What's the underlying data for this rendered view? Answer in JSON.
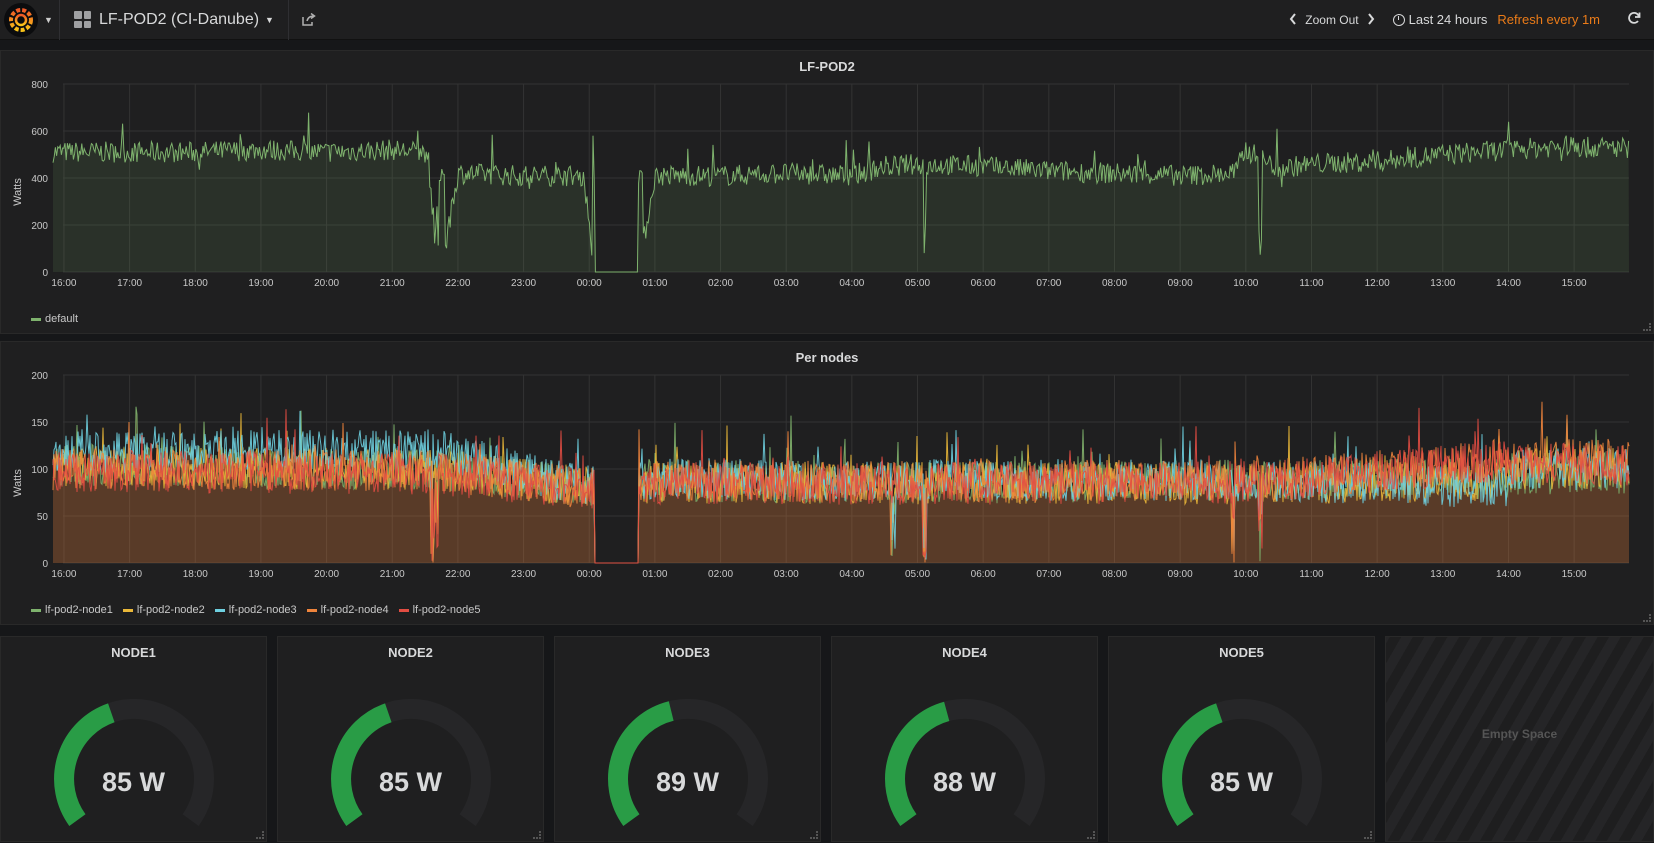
{
  "header": {
    "dashboard_title": "LF-POD2 (CI-Danube)",
    "zoom_label": "Zoom Out",
    "time_range": "Last 24 hours",
    "refresh_label": "Refresh every 1m"
  },
  "colors": {
    "total": "#7eb26d",
    "node1": "#7eb26d",
    "node2": "#eab839",
    "node3": "#6ed0e0",
    "node4": "#ef843c",
    "node5": "#e24d42",
    "gauge": "#299c46",
    "refresh": "#eb7b18"
  },
  "panels": {
    "total": {
      "title": "LF-POD2",
      "ylabel": "Watts",
      "legend": [
        "default"
      ]
    },
    "nodes": {
      "title": "Per nodes",
      "ylabel": "Watts",
      "legend": [
        "lf-pod2-node1",
        "lf-pod2-node2",
        "lf-pod2-node3",
        "lf-pod2-node4",
        "lf-pod2-node5"
      ]
    },
    "gauges": [
      {
        "title": "NODE1",
        "value": "85 W",
        "level": 85
      },
      {
        "title": "NODE2",
        "value": "85 W",
        "level": 85
      },
      {
        "title": "NODE3",
        "value": "89 W",
        "level": 89
      },
      {
        "title": "NODE4",
        "value": "88 W",
        "level": 88
      },
      {
        "title": "NODE5",
        "value": "85 W",
        "level": 85
      }
    ],
    "empty_space": "Empty Space"
  },
  "chart_data": [
    {
      "type": "area",
      "title": "LF-POD2",
      "ylabel": "Watts",
      "ylim": [
        0,
        800
      ],
      "yticks": [
        0,
        200,
        400,
        600,
        800
      ],
      "xticks": [
        "16:00",
        "17:00",
        "18:00",
        "19:00",
        "20:00",
        "21:00",
        "22:00",
        "23:00",
        "00:00",
        "01:00",
        "02:00",
        "03:00",
        "04:00",
        "05:00",
        "06:00",
        "07:00",
        "08:00",
        "09:00",
        "10:00",
        "11:00",
        "12:00",
        "13:00",
        "14:00",
        "15:00"
      ],
      "grid": true,
      "legend": "bottom-left",
      "series": [
        {
          "name": "default",
          "x": [
            "15:50",
            "17:00",
            "18:00",
            "19:00",
            "20:00",
            "21:00",
            "21:30",
            "21:45",
            "22:00",
            "23:00",
            "23:55",
            "00:05",
            "00:45",
            "01:00",
            "02:00",
            "03:00",
            "04:00",
            "04:30",
            "05:00",
            "06:00",
            "07:00",
            "08:00",
            "09:00",
            "09:50",
            "10:00",
            "10:30",
            "11:00",
            "12:00",
            "13:00",
            "14:00",
            "15:00",
            "15:50"
          ],
          "values": [
            510,
            510,
            510,
            520,
            510,
            520,
            510,
            0,
            420,
            410,
            410,
            0,
            0,
            410,
            410,
            420,
            410,
            450,
            460,
            450,
            430,
            420,
            410,
            420,
            520,
            440,
            460,
            470,
            500,
            520,
            540,
            530
          ]
        }
      ]
    },
    {
      "type": "area",
      "title": "Per nodes",
      "ylabel": "Watts",
      "ylim": [
        0,
        200
      ],
      "yticks": [
        0,
        50,
        100,
        150,
        200
      ],
      "xticks": [
        "16:00",
        "17:00",
        "18:00",
        "19:00",
        "20:00",
        "21:00",
        "22:00",
        "23:00",
        "00:00",
        "01:00",
        "02:00",
        "03:00",
        "04:00",
        "05:00",
        "06:00",
        "07:00",
        "08:00",
        "09:00",
        "10:00",
        "11:00",
        "12:00",
        "13:00",
        "14:00",
        "15:00"
      ],
      "grid": true,
      "legend": "bottom-left",
      "series": [
        {
          "name": "lf-pod2-node1",
          "values": [
            105,
            100,
            82,
            88,
            85,
            88,
            90,
            95
          ]
        },
        {
          "name": "lf-pod2-node2",
          "values": [
            102,
            100,
            80,
            86,
            85,
            85,
            88,
            100
          ]
        },
        {
          "name": "lf-pod2-node3",
          "values": [
            118,
            120,
            82,
            90,
            88,
            88,
            80,
            100
          ]
        },
        {
          "name": "lf-pod2-node4",
          "values": [
            100,
            98,
            80,
            88,
            86,
            88,
            110,
            110
          ]
        },
        {
          "name": "lf-pod2-node5",
          "values": [
            98,
            95,
            78,
            85,
            84,
            86,
            110,
            105
          ]
        }
      ]
    }
  ]
}
